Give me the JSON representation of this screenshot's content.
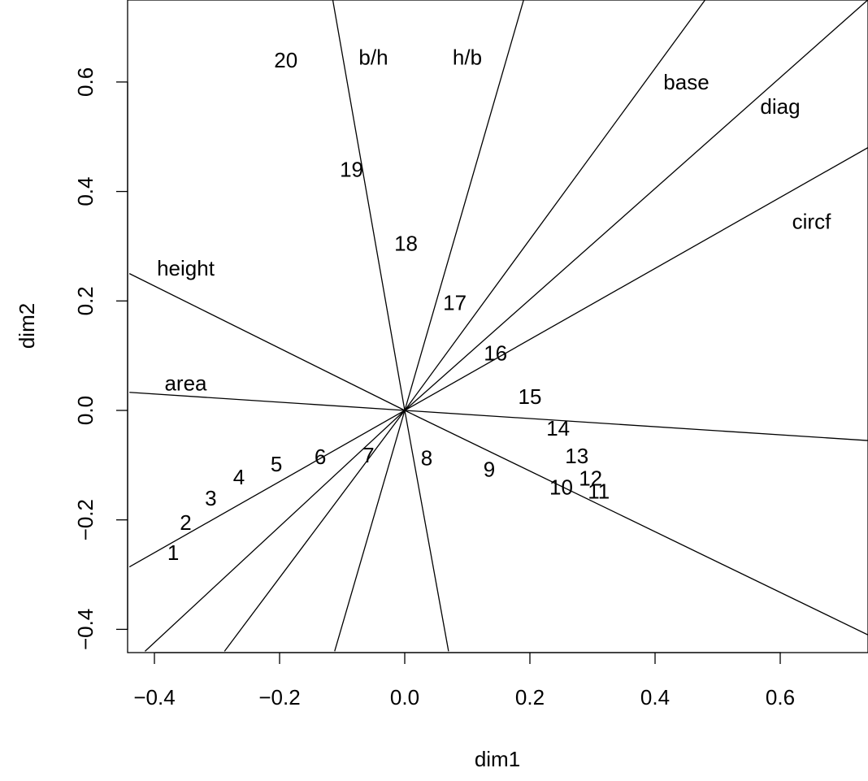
{
  "chart_data": {
    "type": "scatter",
    "title": "",
    "xlabel": "dim1",
    "ylabel": "dim2",
    "xlim": [
      -0.44,
      0.74
    ],
    "ylim": [
      -0.44,
      0.75
    ],
    "x_ticks": [
      -0.4,
      -0.2,
      0.0,
      0.2,
      0.4,
      0.6
    ],
    "x_tick_labels": [
      "−0.4",
      "−0.2",
      "0.0",
      "0.2",
      "0.4",
      "0.6"
    ],
    "y_ticks": [
      -0.4,
      -0.2,
      0.0,
      0.2,
      0.4,
      0.6
    ],
    "y_tick_labels": [
      "−0.4",
      "−0.2",
      "0.0",
      "0.2",
      "0.4",
      "0.6"
    ],
    "grid": false,
    "legend": "none",
    "points": [
      {
        "label": "1",
        "x": -0.37,
        "y": -0.26
      },
      {
        "label": "2",
        "x": -0.35,
        "y": -0.205
      },
      {
        "label": "3",
        "x": -0.31,
        "y": -0.16
      },
      {
        "label": "4",
        "x": -0.265,
        "y": -0.122
      },
      {
        "label": "5",
        "x": -0.205,
        "y": -0.098
      },
      {
        "label": "6",
        "x": -0.135,
        "y": -0.085
      },
      {
        "label": "7",
        "x": -0.058,
        "y": -0.082
      },
      {
        "label": "8",
        "x": 0.035,
        "y": -0.087
      },
      {
        "label": "9",
        "x": 0.135,
        "y": -0.108
      },
      {
        "label": "10",
        "x": 0.25,
        "y": -0.14
      },
      {
        "label": "11",
        "x": 0.31,
        "y": -0.148
      },
      {
        "label": "12",
        "x": 0.297,
        "y": -0.124
      },
      {
        "label": "13",
        "x": 0.275,
        "y": -0.083
      },
      {
        "label": "14",
        "x": 0.245,
        "y": -0.033
      },
      {
        "label": "15",
        "x": 0.2,
        "y": 0.025
      },
      {
        "label": "16",
        "x": 0.145,
        "y": 0.105
      },
      {
        "label": "17",
        "x": 0.08,
        "y": 0.197
      },
      {
        "label": "18",
        "x": 0.002,
        "y": 0.305
      },
      {
        "label": "19",
        "x": -0.085,
        "y": 0.44
      },
      {
        "label": "20",
        "x": -0.19,
        "y": 0.64
      }
    ],
    "variables": [
      {
        "label": "height",
        "x": -0.44,
        "y": 0.25,
        "label_x": -0.35,
        "label_y": 0.26
      },
      {
        "label": "area",
        "x": -0.44,
        "y": 0.033,
        "label_x": -0.35,
        "label_y": 0.05
      },
      {
        "label": "b/h",
        "x": -0.115,
        "y": 0.75,
        "label_x": -0.05,
        "label_y": 0.645
      },
      {
        "label": "h/b",
        "x": 0.19,
        "y": 0.75,
        "label_x": 0.1,
        "label_y": 0.645
      },
      {
        "label": "base",
        "x": 0.48,
        "y": 0.75,
        "label_x": 0.45,
        "label_y": 0.6
      },
      {
        "label": "diag",
        "x": 0.74,
        "y": 0.75,
        "label_x": 0.6,
        "label_y": 0.555
      },
      {
        "label": "circf",
        "x": 0.74,
        "y": 0.48,
        "label_x": 0.65,
        "label_y": 0.345
      }
    ],
    "extra_rays": [
      {
        "x": 0.74,
        "y": -0.055
      },
      {
        "x": 0.74,
        "y": -0.41
      },
      {
        "x": 0.07,
        "y": -0.44
      },
      {
        "x": -0.112,
        "y": -0.44
      },
      {
        "x": -0.288,
        "y": -0.44
      },
      {
        "x": -0.415,
        "y": -0.44
      },
      {
        "x": -0.44,
        "y": -0.286
      }
    ]
  }
}
